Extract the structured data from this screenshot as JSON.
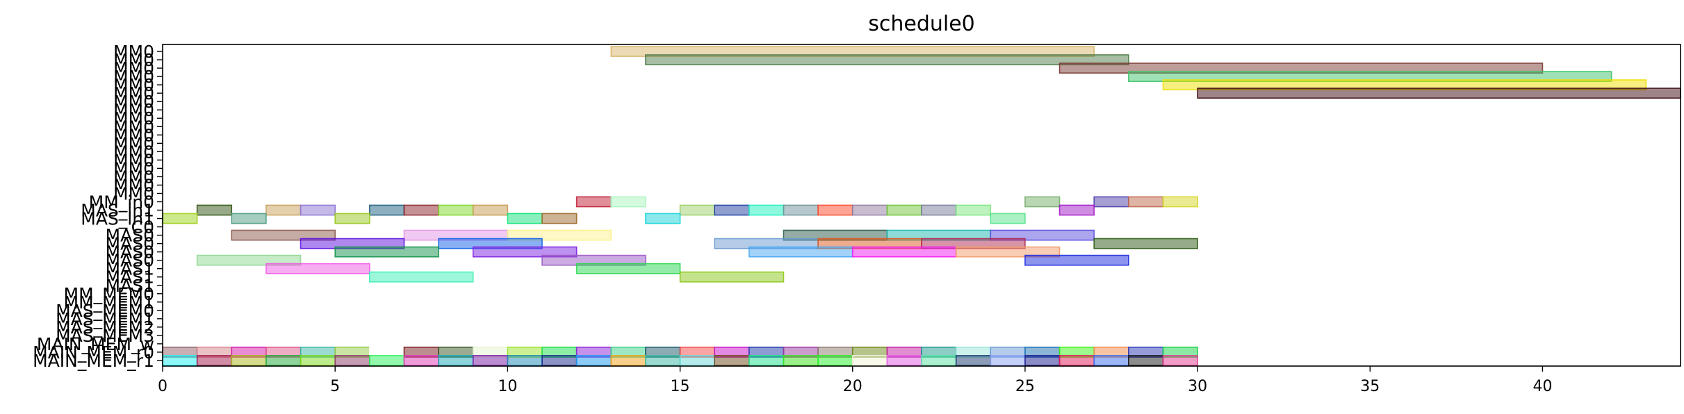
{
  "chart_data": {
    "type": "bar",
    "orientation": "horizontal",
    "title": "schedule0",
    "xlabel": "",
    "ylabel": "",
    "xlim": [
      0,
      44
    ],
    "xticks": [
      0,
      5,
      10,
      15,
      20,
      25,
      30,
      35,
      40
    ],
    "grid": false,
    "rows": [
      "MM0",
      "MM0",
      "MM0",
      "MM0",
      "MM0",
      "MM0",
      "MM0",
      "MM0",
      "MM0",
      "MM0",
      "MM0",
      "MM0",
      "MM0",
      "MM0",
      "MM0",
      "MM0",
      "MM0",
      "MM0",
      "MM_in0",
      "MAS_in1",
      "MAS_in1",
      "C0",
      "MAS0",
      "MAS0",
      "MAS0",
      "MAS0",
      "MAS1",
      "MAS1",
      "MAS1",
      "MM_MEM0",
      "MM_MEM1",
      "MAS_MEM0",
      "MAS_MEM1",
      "MAS_MEM2",
      "MAS_MEM3",
      "MAIN_MEM_w",
      "MAIN_MEM_r0",
      "MAIN_MEM_r1"
    ],
    "bars": [
      {
        "row": 0,
        "start": 13,
        "end": 27,
        "color": "#d8b56a"
      },
      {
        "row": 1,
        "start": 14,
        "end": 28,
        "color": "#4f7c4a"
      },
      {
        "row": 2,
        "start": 26,
        "end": 40,
        "color": "#7a3c34"
      },
      {
        "row": 3,
        "start": 28,
        "end": 42,
        "color": "#3fc46a"
      },
      {
        "row": 4,
        "start": 29,
        "end": 43,
        "color": "#f0e000"
      },
      {
        "row": 5,
        "start": 30,
        "end": 44,
        "color": "#3d0a10"
      },
      {
        "row": 18,
        "start": 12,
        "end": 13,
        "color": "#c21f36"
      },
      {
        "row": 18,
        "start": 13,
        "end": 14,
        "color": "#a9f5c0"
      },
      {
        "row": 18,
        "start": 25,
        "end": 26,
        "color": "#76b06a"
      },
      {
        "row": 18,
        "start": 27,
        "end": 28,
        "color": "#4b3fa8"
      },
      {
        "row": 18,
        "start": 28,
        "end": 29,
        "color": "#c0674e"
      },
      {
        "row": 18,
        "start": 29,
        "end": 30,
        "color": "#d6d628"
      },
      {
        "row": 19,
        "start": 1,
        "end": 2,
        "color": "#2f5412"
      },
      {
        "row": 19,
        "start": 3,
        "end": 4,
        "color": "#c9a15c"
      },
      {
        "row": 19,
        "start": 4,
        "end": 5,
        "color": "#8c74d4"
      },
      {
        "row": 19,
        "start": 6,
        "end": 7,
        "color": "#1c6080"
      },
      {
        "row": 19,
        "start": 7,
        "end": 8,
        "color": "#8c242c"
      },
      {
        "row": 19,
        "start": 8,
        "end": 9,
        "color": "#7ed82a"
      },
      {
        "row": 19,
        "start": 9,
        "end": 10,
        "color": "#c79b4f"
      },
      {
        "row": 19,
        "start": 15,
        "end": 16,
        "color": "#9ecf6a"
      },
      {
        "row": 19,
        "start": 16,
        "end": 17,
        "color": "#1f3ea0"
      },
      {
        "row": 19,
        "start": 17,
        "end": 18,
        "color": "#1ef2c0"
      },
      {
        "row": 19,
        "start": 18,
        "end": 19,
        "color": "#6e9298"
      },
      {
        "row": 19,
        "start": 19,
        "end": 20,
        "color": "#ff4a2c"
      },
      {
        "row": 19,
        "start": 20,
        "end": 21,
        "color": "#917ca0"
      },
      {
        "row": 19,
        "start": 21,
        "end": 22,
        "color": "#6fc43a"
      },
      {
        "row": 19,
        "start": 22,
        "end": 23,
        "color": "#7a7c9a"
      },
      {
        "row": 19,
        "start": 23,
        "end": 24,
        "color": "#7ee67e"
      },
      {
        "row": 19,
        "start": 26,
        "end": 27,
        "color": "#a21ac8"
      },
      {
        "row": 20,
        "start": 0,
        "end": 1,
        "color": "#9ed11a"
      },
      {
        "row": 20,
        "start": 2,
        "end": 3,
        "color": "#4e9c82"
      },
      {
        "row": 20,
        "start": 5,
        "end": 6,
        "color": "#98c81e"
      },
      {
        "row": 20,
        "start": 10,
        "end": 11,
        "color": "#14e27c"
      },
      {
        "row": 20,
        "start": 11,
        "end": 12,
        "color": "#9c6a2c"
      },
      {
        "row": 20,
        "start": 14,
        "end": 15,
        "color": "#1ad4d8"
      },
      {
        "row": 20,
        "start": 24,
        "end": 25,
        "color": "#58e48c"
      },
      {
        "row": 22,
        "start": 2,
        "end": 5,
        "color": "#8c5a4a"
      },
      {
        "row": 22,
        "start": 7,
        "end": 10,
        "color": "#e296e6"
      },
      {
        "row": 22,
        "start": 10,
        "end": 13,
        "color": "#fcf28c"
      },
      {
        "row": 22,
        "start": 18,
        "end": 21,
        "color": "#2a5a48"
      },
      {
        "row": 22,
        "start": 21,
        "end": 24,
        "color": "#1eb8b0"
      },
      {
        "row": 22,
        "start": 24,
        "end": 27,
        "color": "#5a4ee0"
      },
      {
        "row": 23,
        "start": 4,
        "end": 7,
        "color": "#5e12e0"
      },
      {
        "row": 23,
        "start": 8,
        "end": 11,
        "color": "#1462e8"
      },
      {
        "row": 23,
        "start": 16,
        "end": 19,
        "color": "#6a9ad0"
      },
      {
        "row": 23,
        "start": 19,
        "end": 22,
        "color": "#dc5a22"
      },
      {
        "row": 23,
        "start": 22,
        "end": 25,
        "color": "#b02852"
      },
      {
        "row": 23,
        "start": 27,
        "end": 30,
        "color": "#2e5a14"
      },
      {
        "row": 24,
        "start": 5,
        "end": 8,
        "color": "#14944c"
      },
      {
        "row": 24,
        "start": 9,
        "end": 12,
        "color": "#7e22e2"
      },
      {
        "row": 24,
        "start": 17,
        "end": 20,
        "color": "#46a6f2"
      },
      {
        "row": 24,
        "start": 20,
        "end": 23,
        "color": "#f21ef2"
      },
      {
        "row": 24,
        "start": 23,
        "end": 26,
        "color": "#f29c6a"
      },
      {
        "row": 25,
        "start": 1,
        "end": 4,
        "color": "#8ed890"
      },
      {
        "row": 25,
        "start": 11,
        "end": 14,
        "color": "#9a58c6"
      },
      {
        "row": 25,
        "start": 25,
        "end": 28,
        "color": "#1a2ae0"
      },
      {
        "row": 26,
        "start": 3,
        "end": 6,
        "color": "#f25ae6"
      },
      {
        "row": 26,
        "start": 12,
        "end": 15,
        "color": "#2ad850"
      },
      {
        "row": 27,
        "start": 6,
        "end": 9,
        "color": "#3ef0b8"
      },
      {
        "row": 27,
        "start": 15,
        "end": 18,
        "color": "#8cc81a"
      },
      {
        "row": 36,
        "start": 0,
        "end": 1,
        "color": "#916068"
      },
      {
        "row": 36,
        "start": 1,
        "end": 2,
        "color": "#d6868e"
      },
      {
        "row": 36,
        "start": 2,
        "end": 3,
        "color": "#d61aa8"
      },
      {
        "row": 36,
        "start": 3,
        "end": 4,
        "color": "#e05a8c"
      },
      {
        "row": 36,
        "start": 4,
        "end": 5,
        "color": "#3ab8a4"
      },
      {
        "row": 36,
        "start": 5,
        "end": 6,
        "color": "#96ca4a"
      },
      {
        "row": 36,
        "start": 6,
        "end": 7,
        "color": "#ffffff"
      },
      {
        "row": 36,
        "start": 7,
        "end": 8,
        "color": "#7a1e22"
      },
      {
        "row": 36,
        "start": 8,
        "end": 9,
        "color": "#3a5a28"
      },
      {
        "row": 36,
        "start": 9,
        "end": 10,
        "color": "#e6f4d2"
      },
      {
        "row": 36,
        "start": 10,
        "end": 11,
        "color": "#9ae22a"
      },
      {
        "row": 36,
        "start": 11,
        "end": 12,
        "color": "#1ee04a"
      },
      {
        "row": 36,
        "start": 12,
        "end": 13,
        "color": "#8e24d6"
      },
      {
        "row": 36,
        "start": 13,
        "end": 14,
        "color": "#3ed08a"
      },
      {
        "row": 36,
        "start": 14,
        "end": 15,
        "color": "#1a5a6a"
      },
      {
        "row": 36,
        "start": 15,
        "end": 16,
        "color": "#f24a4a"
      },
      {
        "row": 36,
        "start": 16,
        "end": 17,
        "color": "#c812c8"
      },
      {
        "row": 36,
        "start": 17,
        "end": 18,
        "color": "#1e3aa8"
      },
      {
        "row": 36,
        "start": 18,
        "end": 19,
        "color": "#9a3aa0"
      },
      {
        "row": 36,
        "start": 19,
        "end": 20,
        "color": "#8e7a6e"
      },
      {
        "row": 36,
        "start": 20,
        "end": 21,
        "color": "#6e8a1a"
      },
      {
        "row": 36,
        "start": 21,
        "end": 22,
        "color": "#c21ea0"
      },
      {
        "row": 36,
        "start": 22,
        "end": 23,
        "color": "#1e9a8e"
      },
      {
        "row": 36,
        "start": 23,
        "end": 24,
        "color": "#9ae6d8"
      },
      {
        "row": 36,
        "start": 24,
        "end": 25,
        "color": "#6a9ad6"
      },
      {
        "row": 36,
        "start": 25,
        "end": 26,
        "color": "#1a6eb2"
      },
      {
        "row": 36,
        "start": 26,
        "end": 27,
        "color": "#3ef21a"
      },
      {
        "row": 36,
        "start": 27,
        "end": 28,
        "color": "#f28a4a"
      },
      {
        "row": 36,
        "start": 28,
        "end": 29,
        "color": "#2e3ab8"
      },
      {
        "row": 36,
        "start": 29,
        "end": 30,
        "color": "#1ad44a"
      },
      {
        "row": 37,
        "start": 0,
        "end": 1,
        "color": "#1ef2f2"
      },
      {
        "row": 37,
        "start": 1,
        "end": 2,
        "color": "#a21a4a"
      },
      {
        "row": 37,
        "start": 2,
        "end": 3,
        "color": "#aab81a"
      },
      {
        "row": 37,
        "start": 3,
        "end": 4,
        "color": "#1eaa3a"
      },
      {
        "row": 37,
        "start": 4,
        "end": 5,
        "color": "#7ed81a"
      },
      {
        "row": 37,
        "start": 5,
        "end": 6,
        "color": "#8e3a68"
      },
      {
        "row": 37,
        "start": 6,
        "end": 7,
        "color": "#2af25a"
      },
      {
        "row": 37,
        "start": 7,
        "end": 8,
        "color": "#e23ab8"
      },
      {
        "row": 37,
        "start": 8,
        "end": 9,
        "color": "#1aa8b8"
      },
      {
        "row": 37,
        "start": 9,
        "end": 10,
        "color": "#7a1aa8"
      },
      {
        "row": 37,
        "start": 10,
        "end": 11,
        "color": "#1e8ab8"
      },
      {
        "row": 37,
        "start": 11,
        "end": 12,
        "color": "#1a2a8e"
      },
      {
        "row": 37,
        "start": 12,
        "end": 13,
        "color": "#1e9af2"
      },
      {
        "row": 37,
        "start": 13,
        "end": 14,
        "color": "#f2a21a"
      },
      {
        "row": 37,
        "start": 14,
        "end": 15,
        "color": "#3ab8a0"
      },
      {
        "row": 37,
        "start": 15,
        "end": 16,
        "color": "#6ad8d8"
      },
      {
        "row": 37,
        "start": 16,
        "end": 17,
        "color": "#6e4a1a"
      },
      {
        "row": 37,
        "start": 17,
        "end": 18,
        "color": "#1ee08a"
      },
      {
        "row": 37,
        "start": 18,
        "end": 19,
        "color": "#3ae21a"
      },
      {
        "row": 37,
        "start": 19,
        "end": 20,
        "color": "#2af22a"
      },
      {
        "row": 37,
        "start": 20,
        "end": 21,
        "color": "#f2f2d8"
      },
      {
        "row": 37,
        "start": 21,
        "end": 22,
        "color": "#e25ae2"
      },
      {
        "row": 37,
        "start": 22,
        "end": 23,
        "color": "#5ae2a2"
      },
      {
        "row": 37,
        "start": 23,
        "end": 24,
        "color": "#1a3a6e"
      },
      {
        "row": 37,
        "start": 24,
        "end": 25,
        "color": "#8aa2f2"
      },
      {
        "row": 37,
        "start": 25,
        "end": 26,
        "color": "#1a1a8e"
      },
      {
        "row": 37,
        "start": 26,
        "end": 27,
        "color": "#e21a5a"
      },
      {
        "row": 37,
        "start": 27,
        "end": 28,
        "color": "#3a6ef2"
      },
      {
        "row": 37,
        "start": 28,
        "end": 29,
        "color": "#1a1a1a"
      },
      {
        "row": 37,
        "start": 29,
        "end": 30,
        "color": "#e23a8e"
      }
    ]
  }
}
